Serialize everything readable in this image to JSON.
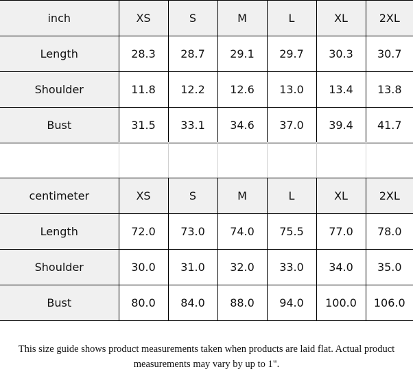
{
  "inch_table": {
    "unit": "inch",
    "sizes": [
      "XS",
      "S",
      "M",
      "L",
      "XL",
      "2XL"
    ],
    "rows": [
      {
        "label": "Length",
        "values": [
          "28.3",
          "28.7",
          "29.1",
          "29.7",
          "30.3",
          "30.7"
        ]
      },
      {
        "label": "Shoulder",
        "values": [
          "11.8",
          "12.2",
          "12.6",
          "13.0",
          "13.4",
          "13.8"
        ]
      },
      {
        "label": "Bust",
        "values": [
          "31.5",
          "33.1",
          "34.6",
          "37.0",
          "39.4",
          "41.7"
        ]
      }
    ]
  },
  "cm_table": {
    "unit": "centimeter",
    "sizes": [
      "XS",
      "S",
      "M",
      "L",
      "XL",
      "2XL"
    ],
    "rows": [
      {
        "label": "Length",
        "values": [
          "72.0",
          "73.0",
          "74.0",
          "75.5",
          "77.0",
          "78.0"
        ]
      },
      {
        "label": "Shoulder",
        "values": [
          "30.0",
          "31.0",
          "32.0",
          "33.0",
          "34.0",
          "35.0"
        ]
      },
      {
        "label": "Bust",
        "values": [
          "80.0",
          "84.0",
          "88.0",
          "94.0",
          "100.0",
          "106.0"
        ]
      }
    ]
  },
  "note": "This size guide shows product measurements taken when products are laid flat. Actual product measurements may vary by up to 1\"."
}
